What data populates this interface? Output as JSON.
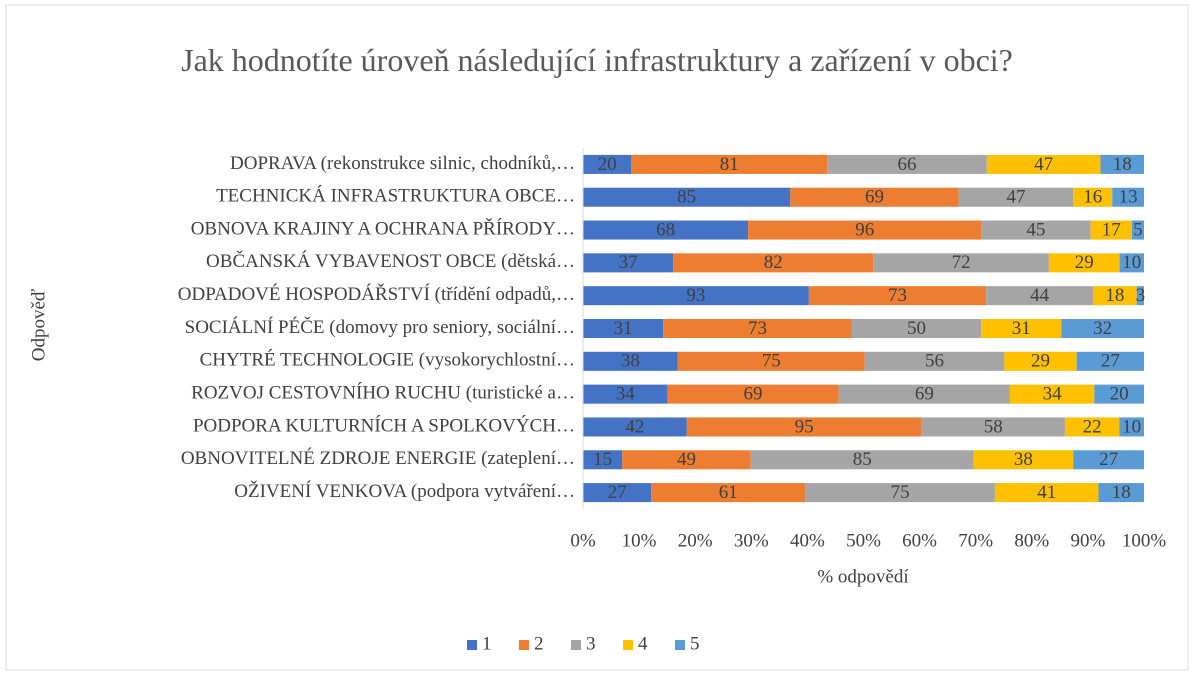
{
  "chart_data": {
    "type": "bar",
    "orientation": "horizontal",
    "stacking": "percent",
    "title": "Jak hodnotíte úroveň následující infrastruktury a zařízení v obci?",
    "xlabel": "% odpovědí",
    "ylabel": "Odpověď",
    "categories": [
      "DOPRAVA (rekonstrukce silnic, chodníků,…",
      "TECHNICKÁ INFRASTRUKTURA OBCE…",
      "OBNOVA KRAJINY A OCHRANA PŘÍRODY…",
      "OBČANSKÁ VYBAVENOST OBCE (dětská…",
      "ODPADOVÉ HOSPODÁŘSTVÍ (třídění odpadů,…",
      "SOCIÁLNÍ PÉČE (domovy pro seniory, sociální…",
      "CHYTRÉ TECHNOLOGIE (vysokorychlostní…",
      "ROZVOJ CESTOVNÍHO RUCHU (turistické a…",
      "PODPORA KULTURNÍCH A SPOLKOVÝCH…",
      "OBNOVITELNÉ ZDROJE ENERGIE (zateplení…",
      "OŽIVENÍ VENKOVA (podpora vytváření…"
    ],
    "series": [
      {
        "name": "1",
        "color": "#4472c4",
        "values": [
          20,
          85,
          68,
          37,
          93,
          31,
          38,
          34,
          42,
          15,
          27
        ]
      },
      {
        "name": "2",
        "color": "#ed7d31",
        "values": [
          81,
          69,
          96,
          82,
          73,
          73,
          75,
          69,
          95,
          49,
          61
        ]
      },
      {
        "name": "3",
        "color": "#a5a5a5",
        "values": [
          66,
          47,
          45,
          72,
          44,
          50,
          56,
          69,
          58,
          85,
          75
        ]
      },
      {
        "name": "4",
        "color": "#ffc000",
        "values": [
          47,
          16,
          17,
          29,
          18,
          31,
          29,
          34,
          22,
          38,
          41
        ]
      },
      {
        "name": "5",
        "color": "#5b9bd5",
        "values": [
          18,
          13,
          5,
          10,
          3,
          32,
          27,
          20,
          10,
          27,
          18
        ]
      }
    ],
    "xlim": [
      0,
      100
    ],
    "xticks": [
      {
        "value": 0,
        "label": "0%"
      },
      {
        "value": 10,
        "label": "10%"
      },
      {
        "value": 20,
        "label": "20%"
      },
      {
        "value": 30,
        "label": "30%"
      },
      {
        "value": 40,
        "label": "40%"
      },
      {
        "value": 50,
        "label": "50%"
      },
      {
        "value": 60,
        "label": "60%"
      },
      {
        "value": 70,
        "label": "70%"
      },
      {
        "value": 80,
        "label": "80%"
      },
      {
        "value": 90,
        "label": "90%"
      },
      {
        "value": 100,
        "label": "100%"
      }
    ],
    "grid": false,
    "legend": "bottom"
  }
}
